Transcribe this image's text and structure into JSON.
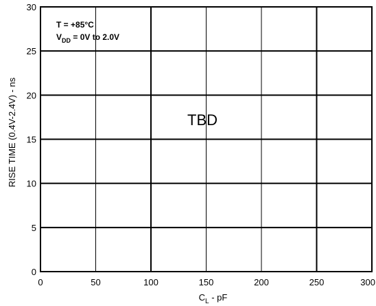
{
  "chart_data": {
    "type": "line",
    "series": [],
    "xlabel_main": "C",
    "xlabel_sub": "L",
    "xlabel_rest": " - pF",
    "ylabel": "RISE TIME (0.4V-2.4V) - ns",
    "xlim": [
      0,
      300
    ],
    "ylim": [
      0,
      30
    ],
    "xticks": [
      0,
      50,
      100,
      150,
      200,
      250,
      300
    ],
    "xtick_labels": [
      "0",
      "50",
      "100",
      "150",
      "200",
      "250",
      "300"
    ],
    "yticks": [
      0,
      5,
      10,
      15,
      20,
      25,
      30
    ],
    "ytick_labels": [
      "0",
      "5",
      "10",
      "15",
      "20",
      "25",
      "30"
    ],
    "grid": true,
    "annotation_line1": "T = +85°C",
    "annotation_line2_main": "V",
    "annotation_line2_sub": "DD",
    "annotation_line2_rest": " = 0V to 2.0V",
    "placeholder_text": "TBD"
  }
}
